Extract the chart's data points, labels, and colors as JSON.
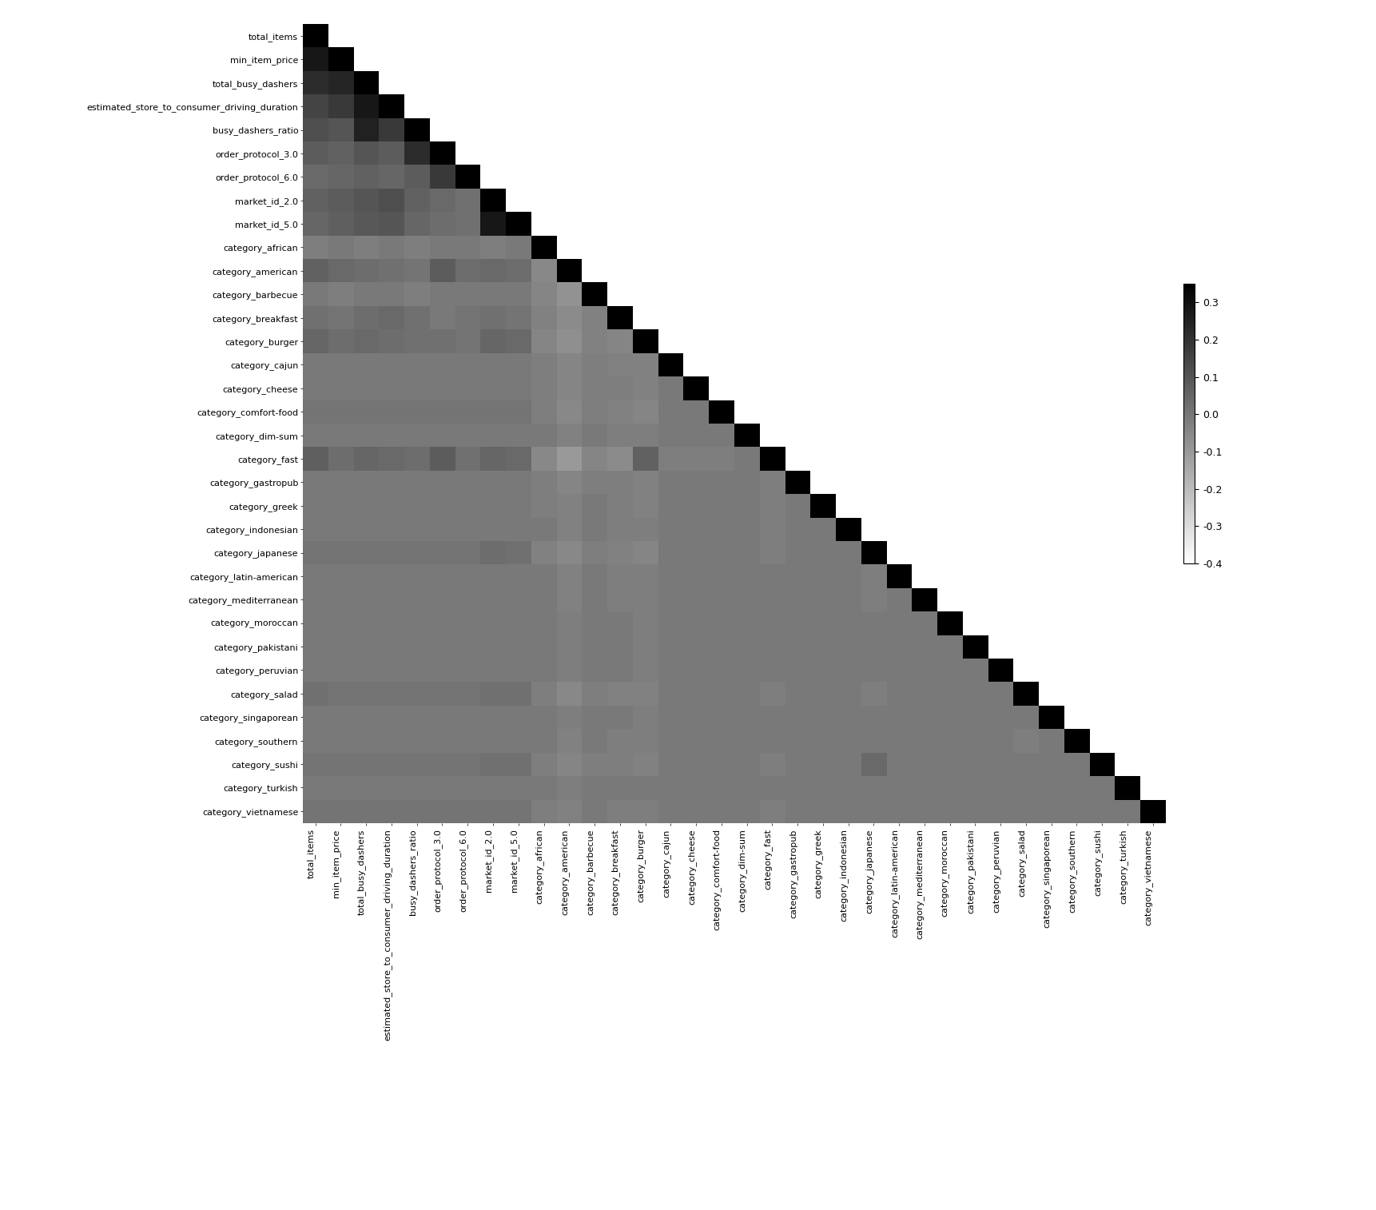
{
  "labels": [
    "total_items",
    "min_item_price",
    "total_busy_dashers",
    "estimated_store_to_consumer_driving_duration",
    "busy_dashers_ratio",
    "order_protocol_3.0",
    "order_protocol_6.0",
    "market_id_2.0",
    "market_id_5.0",
    "category_african",
    "category_american",
    "category_barbecue",
    "category_breakfast",
    "category_burger",
    "category_cajun",
    "category_cheese",
    "category_comfort-food",
    "category_dim-sum",
    "category_fast",
    "category_gastropub",
    "category_greek",
    "category_indonesian",
    "category_japanese",
    "category_latin-american",
    "category_mediterranean",
    "category_moroccan",
    "category_pakistani",
    "category_peruvian",
    "category_salad",
    "category_singaporean",
    "category_southern",
    "category_sushi",
    "category_turkish",
    "category_vietnamese"
  ],
  "vmin": -0.4,
  "vmax": 0.35,
  "colorbar_ticks": [
    0.3,
    0.2,
    0.1,
    0.0,
    -0.1,
    -0.2,
    -0.3,
    -0.4
  ],
  "figsize": [
    17.22,
    15.14
  ],
  "dpi": 100,
  "corr_data": [
    [
      1.0,
      0.0,
      0.0,
      0.0,
      0.0,
      0.0,
      0.0,
      0.0,
      0.0,
      0.0,
      0.0,
      0.0,
      0.0,
      0.0,
      0.0,
      0.0,
      0.0,
      0.0,
      0.0,
      0.0,
      0.0,
      0.0,
      0.0,
      0.0,
      0.0,
      0.0,
      0.0,
      0.0,
      0.0,
      0.0,
      0.0,
      0.0,
      0.0,
      0.0
    ],
    [
      0.28,
      1.0,
      0.0,
      0.0,
      0.0,
      0.0,
      0.0,
      0.0,
      0.0,
      0.0,
      0.0,
      0.0,
      0.0,
      0.0,
      0.0,
      0.0,
      0.0,
      0.0,
      0.0,
      0.0,
      0.0,
      0.0,
      0.0,
      0.0,
      0.0,
      0.0,
      0.0,
      0.0,
      0.0,
      0.0,
      0.0,
      0.0,
      0.0,
      0.0
    ],
    [
      0.22,
      0.24,
      1.0,
      0.0,
      0.0,
      0.0,
      0.0,
      0.0,
      0.0,
      0.0,
      0.0,
      0.0,
      0.0,
      0.0,
      0.0,
      0.0,
      0.0,
      0.0,
      0.0,
      0.0,
      0.0,
      0.0,
      0.0,
      0.0,
      0.0,
      0.0,
      0.0,
      0.0,
      0.0,
      0.0,
      0.0,
      0.0,
      0.0,
      0.0
    ],
    [
      0.15,
      0.18,
      0.28,
      1.0,
      0.0,
      0.0,
      0.0,
      0.0,
      0.0,
      0.0,
      0.0,
      0.0,
      0.0,
      0.0,
      0.0,
      0.0,
      0.0,
      0.0,
      0.0,
      0.0,
      0.0,
      0.0,
      0.0,
      0.0,
      0.0,
      0.0,
      0.0,
      0.0,
      0.0,
      0.0,
      0.0,
      0.0,
      0.0,
      0.0
    ],
    [
      0.12,
      0.1,
      0.25,
      0.18,
      1.0,
      0.0,
      0.0,
      0.0,
      0.0,
      0.0,
      0.0,
      0.0,
      0.0,
      0.0,
      0.0,
      0.0,
      0.0,
      0.0,
      0.0,
      0.0,
      0.0,
      0.0,
      0.0,
      0.0,
      0.0,
      0.0,
      0.0,
      0.0,
      0.0,
      0.0,
      0.0,
      0.0,
      0.0,
      0.0
    ],
    [
      0.08,
      0.06,
      0.1,
      0.08,
      0.22,
      1.0,
      0.0,
      0.0,
      0.0,
      0.0,
      0.0,
      0.0,
      0.0,
      0.0,
      0.0,
      0.0,
      0.0,
      0.0,
      0.0,
      0.0,
      0.0,
      0.0,
      0.0,
      0.0,
      0.0,
      0.0,
      0.0,
      0.0,
      0.0,
      0.0,
      0.0,
      0.0,
      0.0,
      0.0
    ],
    [
      0.04,
      0.05,
      0.06,
      0.05,
      0.08,
      0.18,
      1.0,
      0.0,
      0.0,
      0.0,
      0.0,
      0.0,
      0.0,
      0.0,
      0.0,
      0.0,
      0.0,
      0.0,
      0.0,
      0.0,
      0.0,
      0.0,
      0.0,
      0.0,
      0.0,
      0.0,
      0.0,
      0.0,
      0.0,
      0.0,
      0.0,
      0.0,
      0.0,
      0.0
    ],
    [
      0.06,
      0.08,
      0.1,
      0.12,
      0.06,
      0.04,
      0.02,
      1.0,
      0.0,
      0.0,
      0.0,
      0.0,
      0.0,
      0.0,
      0.0,
      0.0,
      0.0,
      0.0,
      0.0,
      0.0,
      0.0,
      0.0,
      0.0,
      0.0,
      0.0,
      0.0,
      0.0,
      0.0,
      0.0,
      0.0,
      0.0,
      0.0,
      0.0,
      0.0
    ],
    [
      0.05,
      0.07,
      0.09,
      0.1,
      0.05,
      0.03,
      0.02,
      0.28,
      1.0,
      0.0,
      0.0,
      0.0,
      0.0,
      0.0,
      0.0,
      0.0,
      0.0,
      0.0,
      0.0,
      0.0,
      0.0,
      0.0,
      0.0,
      0.0,
      0.0,
      0.0,
      0.0,
      0.0,
      0.0,
      0.0,
      0.0,
      0.0,
      0.0,
      0.0
    ],
    [
      -0.02,
      -0.01,
      -0.02,
      -0.01,
      -0.02,
      -0.01,
      -0.01,
      -0.02,
      -0.01,
      1.0,
      0.0,
      0.0,
      0.0,
      0.0,
      0.0,
      0.0,
      0.0,
      0.0,
      0.0,
      0.0,
      0.0,
      0.0,
      0.0,
      0.0,
      0.0,
      0.0,
      0.0,
      0.0,
      0.0,
      0.0,
      0.0,
      0.0,
      0.0,
      0.0
    ],
    [
      0.06,
      0.04,
      0.03,
      0.02,
      0.01,
      0.08,
      0.03,
      0.04,
      0.03,
      -0.05,
      1.0,
      0.0,
      0.0,
      0.0,
      0.0,
      0.0,
      0.0,
      0.0,
      0.0,
      0.0,
      0.0,
      0.0,
      0.0,
      0.0,
      0.0,
      0.0,
      0.0,
      0.0,
      0.0,
      0.0,
      0.0,
      0.0,
      0.0,
      0.0
    ],
    [
      -0.01,
      -0.02,
      -0.01,
      -0.01,
      -0.02,
      -0.01,
      -0.01,
      -0.01,
      -0.01,
      -0.04,
      -0.08,
      1.0,
      0.0,
      0.0,
      0.0,
      0.0,
      0.0,
      0.0,
      0.0,
      0.0,
      0.0,
      0.0,
      0.0,
      0.0,
      0.0,
      0.0,
      0.0,
      0.0,
      0.0,
      0.0,
      0.0,
      0.0,
      0.0,
      0.0
    ],
    [
      0.02,
      0.01,
      0.03,
      0.04,
      0.02,
      -0.01,
      0.01,
      0.02,
      0.01,
      -0.03,
      -0.06,
      -0.03,
      1.0,
      0.0,
      0.0,
      0.0,
      0.0,
      0.0,
      0.0,
      0.0,
      0.0,
      0.0,
      0.0,
      0.0,
      0.0,
      0.0,
      0.0,
      0.0,
      0.0,
      0.0,
      0.0,
      0.0,
      0.0,
      0.0
    ],
    [
      0.05,
      0.03,
      0.04,
      0.03,
      0.02,
      0.02,
      0.01,
      0.05,
      0.04,
      -0.04,
      -0.07,
      -0.03,
      -0.04,
      1.0,
      0.0,
      0.0,
      0.0,
      0.0,
      0.0,
      0.0,
      0.0,
      0.0,
      0.0,
      0.0,
      0.0,
      0.0,
      0.0,
      0.0,
      0.0,
      0.0,
      0.0,
      0.0,
      0.0,
      0.0
    ],
    [
      -0.01,
      -0.01,
      -0.01,
      -0.01,
      -0.01,
      -0.01,
      -0.01,
      -0.01,
      -0.01,
      -0.02,
      -0.04,
      -0.02,
      -0.03,
      -0.03,
      1.0,
      0.0,
      0.0,
      0.0,
      0.0,
      0.0,
      0.0,
      0.0,
      0.0,
      0.0,
      0.0,
      0.0,
      0.0,
      0.0,
      0.0,
      0.0,
      0.0,
      0.0,
      0.0,
      0.0
    ],
    [
      -0.01,
      -0.01,
      -0.01,
      -0.01,
      -0.01,
      -0.01,
      -0.01,
      -0.01,
      -0.01,
      -0.02,
      -0.04,
      -0.02,
      -0.02,
      -0.03,
      -0.01,
      1.0,
      0.0,
      0.0,
      0.0,
      0.0,
      0.0,
      0.0,
      0.0,
      0.0,
      0.0,
      0.0,
      0.0,
      0.0,
      0.0,
      0.0,
      0.0,
      0.0,
      0.0,
      0.0
    ],
    [
      0.01,
      0.01,
      0.01,
      0.01,
      0.01,
      0.01,
      0.01,
      0.01,
      0.01,
      -0.02,
      -0.05,
      -0.02,
      -0.03,
      -0.04,
      -0.01,
      -0.01,
      1.0,
      0.0,
      0.0,
      0.0,
      0.0,
      0.0,
      0.0,
      0.0,
      0.0,
      0.0,
      0.0,
      0.0,
      0.0,
      0.0,
      0.0,
      0.0,
      0.0,
      0.0
    ],
    [
      -0.01,
      -0.01,
      -0.01,
      -0.01,
      -0.01,
      -0.01,
      -0.01,
      -0.01,
      -0.01,
      -0.01,
      -0.03,
      -0.01,
      -0.02,
      -0.02,
      -0.01,
      -0.01,
      -0.01,
      1.0,
      0.0,
      0.0,
      0.0,
      0.0,
      0.0,
      0.0,
      0.0,
      0.0,
      0.0,
      0.0,
      0.0,
      0.0,
      0.0,
      0.0,
      0.0,
      0.0
    ],
    [
      0.07,
      0.03,
      0.05,
      0.04,
      0.03,
      0.08,
      0.02,
      0.05,
      0.04,
      -0.05,
      -0.1,
      -0.04,
      -0.06,
      0.06,
      -0.02,
      -0.02,
      -0.02,
      -0.01,
      1.0,
      0.0,
      0.0,
      0.0,
      0.0,
      0.0,
      0.0,
      0.0,
      0.0,
      0.0,
      0.0,
      0.0,
      0.0,
      0.0,
      0.0,
      0.0
    ],
    [
      -0.01,
      -0.01,
      -0.01,
      -0.01,
      -0.01,
      -0.01,
      -0.01,
      -0.01,
      -0.01,
      -0.02,
      -0.04,
      -0.02,
      -0.02,
      -0.03,
      -0.01,
      -0.01,
      -0.01,
      -0.01,
      -0.02,
      1.0,
      0.0,
      0.0,
      0.0,
      0.0,
      0.0,
      0.0,
      0.0,
      0.0,
      0.0,
      0.0,
      0.0,
      0.0,
      0.0,
      0.0
    ],
    [
      -0.01,
      -0.01,
      -0.01,
      -0.01,
      -0.01,
      -0.01,
      -0.01,
      -0.01,
      -0.01,
      -0.02,
      -0.03,
      -0.01,
      -0.02,
      -0.03,
      -0.01,
      -0.01,
      -0.01,
      -0.01,
      -0.02,
      -0.01,
      1.0,
      0.0,
      0.0,
      0.0,
      0.0,
      0.0,
      0.0,
      0.0,
      0.0,
      0.0,
      0.0,
      0.0,
      0.0,
      0.0
    ],
    [
      -0.01,
      -0.01,
      -0.01,
      -0.01,
      -0.01,
      -0.01,
      -0.01,
      -0.01,
      -0.01,
      -0.01,
      -0.03,
      -0.01,
      -0.02,
      -0.02,
      -0.01,
      -0.01,
      -0.01,
      -0.01,
      -0.02,
      -0.01,
      -0.01,
      1.0,
      0.0,
      0.0,
      0.0,
      0.0,
      0.0,
      0.0,
      0.0,
      0.0,
      0.0,
      0.0,
      0.0,
      0.0
    ],
    [
      0.01,
      0.01,
      0.01,
      0.01,
      0.01,
      0.01,
      0.01,
      0.03,
      0.02,
      -0.03,
      -0.05,
      -0.02,
      -0.03,
      -0.04,
      -0.01,
      -0.01,
      -0.01,
      -0.01,
      -0.02,
      -0.01,
      -0.01,
      -0.01,
      1.0,
      0.0,
      0.0,
      0.0,
      0.0,
      0.0,
      0.0,
      0.0,
      0.0,
      0.0,
      0.0,
      0.0
    ],
    [
      -0.01,
      -0.01,
      -0.01,
      -0.01,
      -0.01,
      -0.01,
      -0.01,
      -0.01,
      -0.01,
      -0.01,
      -0.03,
      -0.01,
      -0.02,
      -0.02,
      -0.01,
      -0.01,
      -0.01,
      -0.01,
      -0.01,
      -0.01,
      -0.01,
      -0.01,
      -0.02,
      1.0,
      0.0,
      0.0,
      0.0,
      0.0,
      0.0,
      0.0,
      0.0,
      0.0,
      0.0,
      0.0
    ],
    [
      -0.01,
      -0.01,
      -0.01,
      -0.01,
      -0.01,
      -0.01,
      -0.01,
      -0.01,
      -0.01,
      -0.01,
      -0.03,
      -0.01,
      -0.02,
      -0.02,
      -0.01,
      -0.01,
      -0.01,
      -0.01,
      -0.01,
      -0.01,
      -0.01,
      -0.01,
      -0.02,
      -0.01,
      1.0,
      0.0,
      0.0,
      0.0,
      0.0,
      0.0,
      0.0,
      0.0,
      0.0,
      0.0
    ],
    [
      -0.01,
      -0.01,
      -0.01,
      -0.01,
      -0.01,
      -0.01,
      -0.01,
      -0.01,
      -0.01,
      -0.01,
      -0.02,
      -0.01,
      -0.01,
      -0.02,
      -0.01,
      -0.01,
      -0.01,
      -0.01,
      -0.01,
      -0.01,
      -0.01,
      -0.01,
      -0.01,
      -0.01,
      -0.01,
      1.0,
      0.0,
      0.0,
      0.0,
      0.0,
      0.0,
      0.0,
      0.0,
      0.0
    ],
    [
      -0.01,
      -0.01,
      -0.01,
      -0.01,
      -0.01,
      -0.01,
      -0.01,
      -0.01,
      -0.01,
      -0.01,
      -0.02,
      -0.01,
      -0.01,
      -0.02,
      -0.01,
      -0.01,
      -0.01,
      -0.01,
      -0.01,
      -0.01,
      -0.01,
      -0.01,
      -0.01,
      -0.01,
      -0.01,
      -0.01,
      1.0,
      0.0,
      0.0,
      0.0,
      0.0,
      0.0,
      0.0,
      0.0
    ],
    [
      -0.01,
      -0.01,
      -0.01,
      -0.01,
      -0.01,
      -0.01,
      -0.01,
      -0.01,
      -0.01,
      -0.01,
      -0.02,
      -0.01,
      -0.01,
      -0.02,
      -0.01,
      -0.01,
      -0.01,
      -0.01,
      -0.01,
      -0.01,
      -0.01,
      -0.01,
      -0.01,
      -0.01,
      -0.01,
      -0.01,
      -0.01,
      1.0,
      0.0,
      0.0,
      0.0,
      0.0,
      0.0,
      0.0
    ],
    [
      0.02,
      0.01,
      0.01,
      0.01,
      0.01,
      0.01,
      0.01,
      0.02,
      0.02,
      -0.02,
      -0.05,
      -0.02,
      -0.03,
      -0.03,
      -0.01,
      -0.01,
      -0.01,
      -0.01,
      -0.02,
      -0.01,
      -0.01,
      -0.01,
      -0.02,
      -0.01,
      -0.01,
      -0.01,
      -0.01,
      -0.01,
      1.0,
      0.0,
      0.0,
      0.0,
      0.0,
      0.0
    ],
    [
      -0.01,
      -0.01,
      -0.01,
      -0.01,
      -0.01,
      -0.01,
      -0.01,
      -0.01,
      -0.01,
      -0.01,
      -0.02,
      -0.01,
      -0.01,
      -0.02,
      -0.01,
      -0.01,
      -0.01,
      -0.01,
      -0.01,
      -0.01,
      -0.01,
      -0.01,
      -0.01,
      -0.01,
      -0.01,
      -0.01,
      -0.01,
      -0.01,
      -0.01,
      1.0,
      0.0,
      0.0,
      0.0,
      0.0
    ],
    [
      -0.01,
      -0.01,
      -0.01,
      -0.01,
      -0.01,
      -0.01,
      -0.01,
      -0.01,
      -0.01,
      -0.01,
      -0.03,
      -0.01,
      -0.02,
      -0.02,
      -0.01,
      -0.01,
      -0.01,
      -0.01,
      -0.01,
      -0.01,
      -0.01,
      -0.01,
      -0.01,
      -0.01,
      -0.01,
      -0.01,
      -0.01,
      -0.01,
      -0.02,
      -0.01,
      1.0,
      0.0,
      0.0,
      0.0
    ],
    [
      0.01,
      0.01,
      0.01,
      0.01,
      0.01,
      0.01,
      0.01,
      0.02,
      0.02,
      -0.02,
      -0.04,
      -0.02,
      -0.02,
      -0.03,
      -0.01,
      -0.01,
      -0.01,
      -0.01,
      -0.02,
      -0.01,
      -0.01,
      -0.01,
      0.04,
      -0.01,
      -0.01,
      -0.01,
      -0.01,
      -0.01,
      -0.01,
      -0.01,
      -0.01,
      1.0,
      0.0,
      0.0
    ],
    [
      -0.01,
      -0.01,
      -0.01,
      -0.01,
      -0.01,
      -0.01,
      -0.01,
      -0.01,
      -0.01,
      -0.01,
      -0.02,
      -0.01,
      -0.01,
      -0.01,
      -0.01,
      -0.01,
      -0.01,
      -0.01,
      -0.01,
      -0.01,
      -0.01,
      -0.01,
      -0.01,
      -0.01,
      -0.01,
      -0.01,
      -0.01,
      -0.01,
      -0.01,
      -0.01,
      -0.01,
      -0.01,
      1.0,
      0.0
    ],
    [
      0.01,
      0.01,
      0.01,
      0.01,
      0.01,
      0.01,
      0.01,
      0.01,
      0.01,
      -0.02,
      -0.03,
      -0.01,
      -0.02,
      -0.02,
      -0.01,
      -0.01,
      -0.01,
      -0.01,
      -0.02,
      -0.01,
      -0.01,
      -0.01,
      -0.01,
      -0.01,
      -0.01,
      -0.01,
      -0.01,
      -0.01,
      -0.01,
      -0.01,
      -0.01,
      -0.01,
      -0.01,
      1.0
    ]
  ]
}
